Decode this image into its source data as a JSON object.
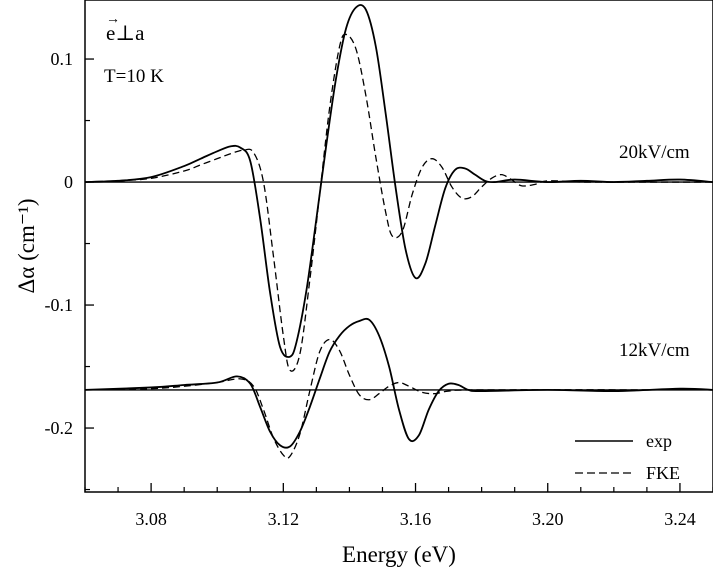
{
  "chart_data": {
    "type": "line",
    "xlabel": "Energy (eV)",
    "ylabel": "Δα (cm⁻¹)",
    "xlim": [
      3.06,
      3.25
    ],
    "ylim": [
      -0.252,
      0.148
    ],
    "xticks": [
      {
        "value": 3.08,
        "label": "3.08"
      },
      {
        "value": 3.12,
        "label": "3.12"
      },
      {
        "value": 3.16,
        "label": "3.16"
      },
      {
        "value": 3.2,
        "label": "3.20"
      },
      {
        "value": 3.24,
        "label": "3.24"
      }
    ],
    "yticks": [
      {
        "value": 0.1,
        "label": "0.1"
      },
      {
        "value": 0.0,
        "label": "0"
      },
      {
        "value": -0.1,
        "label": "-0.1"
      },
      {
        "value": -0.2,
        "label": "-0.2"
      }
    ],
    "annotations": {
      "polarization": "e⊥a",
      "temperature": "T=10 K",
      "field_high": "20kV/cm",
      "field_low": "12kV/cm"
    },
    "legend": {
      "position": "bottom-right",
      "entries": [
        {
          "label": "exp",
          "style": "solid"
        },
        {
          "label": "FKE",
          "style": "dashed"
        }
      ]
    },
    "baselines": [
      {
        "y": 0.0
      },
      {
        "y": -0.169
      }
    ],
    "series": [
      {
        "group": "20kV/cm",
        "style": "solid",
        "x": [
          3.06,
          3.07,
          3.08,
          3.09,
          3.095,
          3.1,
          3.104,
          3.107,
          3.11,
          3.113,
          3.116,
          3.119,
          3.122,
          3.124,
          3.127,
          3.13,
          3.133,
          3.136,
          3.139,
          3.142,
          3.145,
          3.148,
          3.151,
          3.154,
          3.157,
          3.16,
          3.163,
          3.166,
          3.169,
          3.172,
          3.175,
          3.178,
          3.181,
          3.184,
          3.19,
          3.2,
          3.21,
          3.22,
          3.23,
          3.24,
          3.25
        ],
        "y": [
          0.0,
          0.001,
          0.004,
          0.013,
          0.019,
          0.025,
          0.029,
          0.028,
          0.017,
          -0.03,
          -0.09,
          -0.134,
          -0.142,
          -0.13,
          -0.088,
          -0.03,
          0.03,
          0.085,
          0.125,
          0.142,
          0.14,
          0.11,
          0.055,
          -0.005,
          -0.055,
          -0.078,
          -0.066,
          -0.035,
          -0.005,
          0.01,
          0.011,
          0.006,
          0.001,
          0.0,
          0.002,
          0.0,
          0.001,
          0.0,
          0.001,
          0.002,
          0.0
        ]
      },
      {
        "group": "20kV/cm",
        "style": "dashed",
        "x": [
          3.06,
          3.07,
          3.08,
          3.09,
          3.095,
          3.1,
          3.104,
          3.108,
          3.111,
          3.114,
          3.117,
          3.12,
          3.122,
          3.125,
          3.128,
          3.131,
          3.134,
          3.137,
          3.139,
          3.142,
          3.145,
          3.148,
          3.151,
          3.153,
          3.156,
          3.159,
          3.162,
          3.165,
          3.168,
          3.171,
          3.174,
          3.177,
          3.18,
          3.183,
          3.186,
          3.189,
          3.192,
          3.196,
          3.2,
          3.21,
          3.22,
          3.25
        ],
        "y": [
          0.0,
          0.001,
          0.003,
          0.009,
          0.014,
          0.019,
          0.023,
          0.026,
          0.024,
          0.0,
          -0.06,
          -0.125,
          -0.153,
          -0.14,
          -0.08,
          -0.01,
          0.06,
          0.11,
          0.12,
          0.108,
          0.07,
          0.02,
          -0.025,
          -0.044,
          -0.04,
          -0.01,
          0.012,
          0.019,
          0.012,
          -0.004,
          -0.013,
          -0.012,
          -0.004,
          0.003,
          0.006,
          0.002,
          -0.003,
          -0.002,
          0.001,
          0.0,
          0.0,
          0.0
        ]
      },
      {
        "group": "12kV/cm",
        "style": "solid",
        "x": [
          3.06,
          3.08,
          3.09,
          3.1,
          3.106,
          3.11,
          3.113,
          3.116,
          3.119,
          3.122,
          3.125,
          3.128,
          3.131,
          3.134,
          3.137,
          3.14,
          3.143,
          3.146,
          3.149,
          3.152,
          3.155,
          3.158,
          3.161,
          3.164,
          3.167,
          3.17,
          3.173,
          3.176,
          3.18,
          3.2,
          3.22,
          3.24,
          3.25
        ],
        "y": [
          -0.169,
          -0.167,
          -0.165,
          -0.163,
          -0.158,
          -0.164,
          -0.183,
          -0.203,
          -0.214,
          -0.215,
          -0.203,
          -0.183,
          -0.16,
          -0.138,
          -0.125,
          -0.117,
          -0.113,
          -0.112,
          -0.125,
          -0.15,
          -0.185,
          -0.209,
          -0.206,
          -0.185,
          -0.17,
          -0.164,
          -0.165,
          -0.169,
          -0.17,
          -0.169,
          -0.17,
          -0.168,
          -0.169
        ]
      },
      {
        "group": "12kV/cm",
        "style": "dashed",
        "x": [
          3.06,
          3.08,
          3.09,
          3.1,
          3.107,
          3.111,
          3.114,
          3.117,
          3.12,
          3.122,
          3.125,
          3.128,
          3.131,
          3.134,
          3.137,
          3.14,
          3.143,
          3.146,
          3.149,
          3.152,
          3.155,
          3.158,
          3.162,
          3.166,
          3.17,
          3.18,
          3.25
        ],
        "y": [
          -0.169,
          -0.168,
          -0.166,
          -0.163,
          -0.16,
          -0.166,
          -0.185,
          -0.208,
          -0.222,
          -0.223,
          -0.205,
          -0.17,
          -0.138,
          -0.128,
          -0.137,
          -0.157,
          -0.173,
          -0.177,
          -0.172,
          -0.166,
          -0.163,
          -0.166,
          -0.171,
          -0.172,
          -0.17,
          -0.169,
          -0.169
        ]
      }
    ]
  }
}
